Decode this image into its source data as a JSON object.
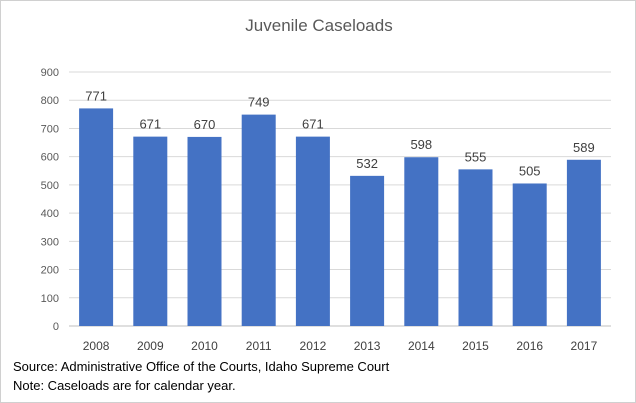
{
  "chart_data": {
    "type": "bar",
    "title": "Juvenile Caseloads",
    "categories": [
      "2008",
      "2009",
      "2010",
      "2011",
      "2012",
      "2013",
      "2014",
      "2015",
      "2016",
      "2017"
    ],
    "values": [
      771,
      671,
      670,
      749,
      671,
      532,
      598,
      555,
      505,
      589
    ],
    "ylim": [
      0,
      900
    ],
    "yticks": [
      0,
      100,
      200,
      300,
      400,
      500,
      600,
      700,
      800,
      900
    ],
    "grid": true,
    "bar_color": "#4472C4",
    "data_labels": true
  },
  "notes": {
    "source": "Source:  Administrative Office of the Courts, Idaho Supreme Court",
    "note": "Note:  Caseloads are for calendar year."
  }
}
